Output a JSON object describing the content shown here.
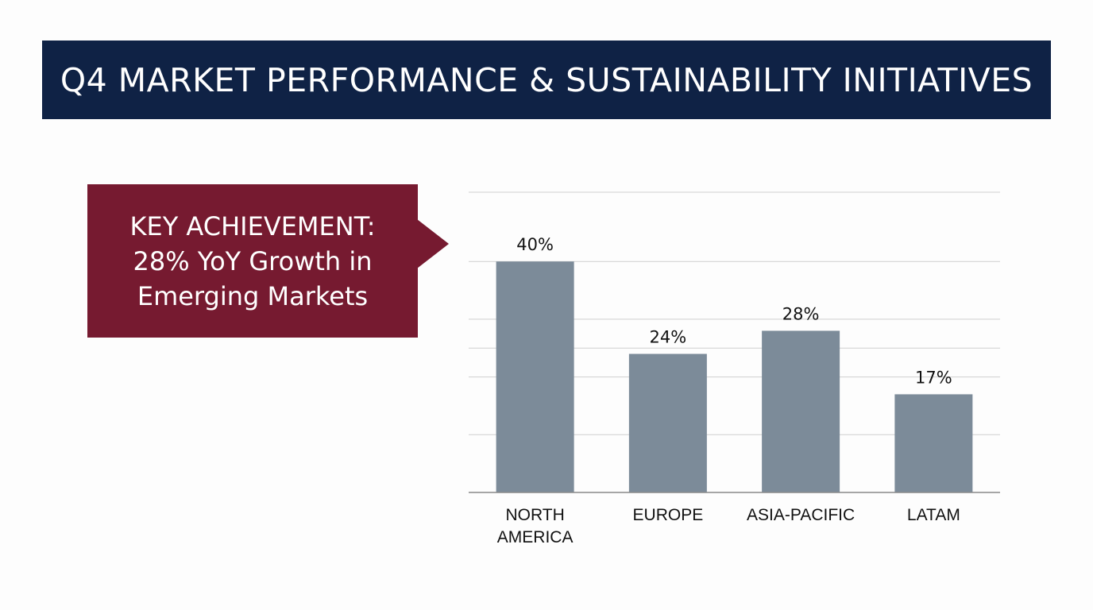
{
  "title": "Q4 MARKET PERFORMANCE & SUSTAINABILITY INITIATIVES",
  "callout": {
    "lines": [
      "KEY ACHIEVEMENT:",
      "28% YoY Growth in",
      "Emerging Markets"
    ]
  },
  "colors": {
    "banner": "#0f2245",
    "callout": "#761a30",
    "bar": "#7c8b99",
    "grid": "#cfcfcf",
    "axis": "#8a8a8a",
    "text": "#111111"
  },
  "chart_data": {
    "type": "bar",
    "categories": [
      [
        "NORTH",
        "AMERICA"
      ],
      [
        "EUROPE"
      ],
      [
        "ASIA-PACIFIC"
      ],
      [
        "LATAM"
      ]
    ],
    "values": [
      40,
      24,
      28,
      17
    ],
    "data_labels": [
      "40%",
      "24%",
      "28%",
      "17%"
    ],
    "ylim": [
      0,
      52
    ],
    "gridlines": [
      0,
      10,
      20,
      25,
      30,
      40,
      52
    ],
    "title": "",
    "xlabel": "",
    "ylabel": "",
    "unit": "%"
  }
}
